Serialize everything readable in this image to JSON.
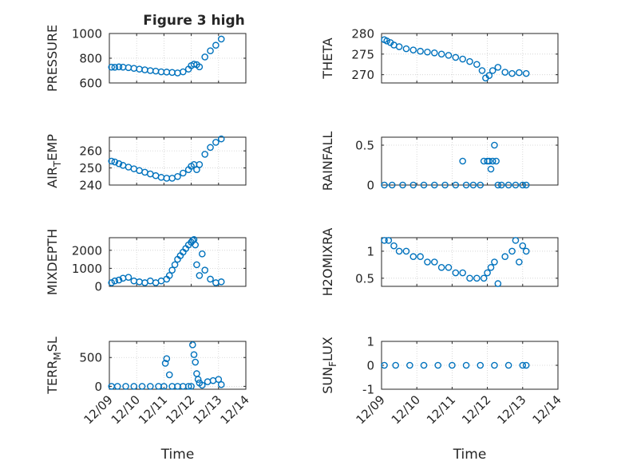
{
  "figure_title": "Figure 3 high",
  "marker_color": "#0072BD",
  "axis_color": "#262626",
  "grid_color": "#cfcfcf",
  "shared_x": {
    "label": "Time",
    "tick_labels": [
      "12/09",
      "12/10",
      "12/11",
      "12/12",
      "12/13",
      "12/14"
    ],
    "range_days": [
      9,
      14
    ]
  },
  "chart_data": [
    {
      "type": "scatter",
      "name": "pressure",
      "ylabel": "PRESSURE",
      "ylim": [
        600,
        1000
      ],
      "yticks": [
        600,
        800,
        1000
      ],
      "yticklabels": [
        "600",
        "800",
        "1000"
      ],
      "grid": true,
      "x": [
        9.08,
        9.2,
        9.35,
        9.5,
        9.7,
        9.9,
        10.1,
        10.3,
        10.5,
        10.7,
        10.9,
        11.1,
        11.3,
        11.5,
        11.7,
        11.9,
        12.0,
        12.1,
        12.2,
        12.3,
        12.5,
        12.7,
        12.9,
        13.1
      ],
      "y": [
        728,
        727,
        730,
        728,
        724,
        718,
        712,
        706,
        700,
        696,
        690,
        688,
        685,
        681,
        690,
        712,
        740,
        752,
        748,
        730,
        810,
        860,
        905,
        955
      ]
    },
    {
      "type": "scatter",
      "name": "theta",
      "ylabel": "THETA",
      "ylim": [
        268,
        280
      ],
      "yticks": [
        270,
        275,
        280
      ],
      "yticklabels": [
        "270",
        "275",
        "280"
      ],
      "grid": true,
      "x": [
        9.08,
        9.15,
        9.25,
        9.35,
        9.5,
        9.7,
        9.9,
        10.1,
        10.3,
        10.5,
        10.7,
        10.9,
        11.1,
        11.3,
        11.5,
        11.7,
        11.85,
        11.95,
        12.05,
        12.15,
        12.3,
        12.5,
        12.7,
        12.9,
        13.1
      ],
      "y": [
        278.5,
        278.2,
        277.8,
        277.2,
        276.8,
        276.3,
        276.0,
        275.7,
        275.5,
        275.3,
        275.0,
        274.7,
        274.2,
        273.8,
        273.2,
        272.5,
        271.0,
        269.2,
        269.8,
        271.0,
        271.8,
        270.6,
        270.3,
        270.5,
        270.3
      ]
    },
    {
      "type": "scatter",
      "name": "air_temp",
      "ylabel": "AIR_TEMP",
      "ylim": [
        240,
        268
      ],
      "yticks": [
        240,
        250,
        260
      ],
      "yticklabels": [
        "240",
        "250",
        "260"
      ],
      "grid": true,
      "x": [
        9.08,
        9.2,
        9.35,
        9.5,
        9.7,
        9.9,
        10.1,
        10.3,
        10.5,
        10.7,
        10.9,
        11.1,
        11.3,
        11.5,
        11.7,
        11.9,
        12.0,
        12.1,
        12.2,
        12.3,
        12.5,
        12.7,
        12.9,
        13.1
      ],
      "y": [
        254,
        253.5,
        252.5,
        251.5,
        250.5,
        249.5,
        248.5,
        247.5,
        246.5,
        245.5,
        244.5,
        244,
        244,
        245,
        247,
        249,
        251,
        252,
        249,
        252,
        258,
        262,
        265,
        267
      ]
    },
    {
      "type": "scatter",
      "name": "rainfall",
      "ylabel": "RAINFALL",
      "ylim": [
        0,
        0.6
      ],
      "yticks": [
        0,
        0.5
      ],
      "yticklabels": [
        "0",
        "0.5"
      ],
      "grid": true,
      "x": [
        9.08,
        9.3,
        9.6,
        9.9,
        10.2,
        10.5,
        10.8,
        11.1,
        11.3,
        11.4,
        11.6,
        11.8,
        11.9,
        12.0,
        12.05,
        12.1,
        12.15,
        12.2,
        12.25,
        12.3,
        12.4,
        12.6,
        12.8,
        13.0,
        13.1
      ],
      "y": [
        0,
        0,
        0,
        0,
        0,
        0,
        0,
        0,
        0.3,
        0,
        0,
        0,
        0.3,
        0.3,
        0.3,
        0.2,
        0.3,
        0.5,
        0.3,
        0,
        0,
        0,
        0,
        0,
        0
      ]
    },
    {
      "type": "scatter",
      "name": "mixdepth",
      "ylabel": "MIXDEPTH",
      "ylim": [
        0,
        2700
      ],
      "yticks": [
        0,
        1000,
        2000
      ],
      "yticklabels": [
        "0",
        "1000",
        "2000"
      ],
      "grid": true,
      "x": [
        9.08,
        9.2,
        9.35,
        9.5,
        9.7,
        9.9,
        10.1,
        10.3,
        10.5,
        10.7,
        10.9,
        11.1,
        11.2,
        11.3,
        11.4,
        11.5,
        11.6,
        11.7,
        11.8,
        11.9,
        12.0,
        12.05,
        12.1,
        12.15,
        12.2,
        12.3,
        12.4,
        12.5,
        12.7,
        12.9,
        13.1
      ],
      "y": [
        200,
        300,
        350,
        450,
        500,
        300,
        250,
        200,
        300,
        200,
        300,
        400,
        600,
        900,
        1200,
        1500,
        1700,
        1900,
        2100,
        2300,
        2450,
        2550,
        2600,
        2300,
        1200,
        600,
        1800,
        900,
        400,
        200,
        250
      ]
    },
    {
      "type": "scatter",
      "name": "h2omixra",
      "ylabel": "H2OMIXRA",
      "ylim": [
        0.35,
        1.25
      ],
      "yticks": [
        0.5,
        1
      ],
      "yticklabels": [
        "0.5",
        "1"
      ],
      "grid": true,
      "x": [
        9.08,
        9.2,
        9.35,
        9.5,
        9.7,
        9.9,
        10.1,
        10.3,
        10.5,
        10.7,
        10.9,
        11.1,
        11.3,
        11.5,
        11.7,
        11.9,
        12.0,
        12.1,
        12.2,
        12.3,
        12.5,
        12.7,
        12.8,
        12.9,
        13.0,
        13.1
      ],
      "y": [
        1.2,
        1.2,
        1.1,
        1.0,
        1.0,
        0.9,
        0.9,
        0.8,
        0.8,
        0.7,
        0.7,
        0.6,
        0.6,
        0.5,
        0.5,
        0.5,
        0.6,
        0.7,
        0.8,
        0.4,
        0.9,
        1.0,
        1.2,
        0.8,
        1.1,
        1.0
      ]
    },
    {
      "type": "scatter",
      "name": "terr_msl",
      "ylabel": "TERR_MSL",
      "ylim": [
        -50,
        780
      ],
      "yticks": [
        0,
        500
      ],
      "yticklabels": [
        "0",
        "500"
      ],
      "grid": true,
      "x": [
        9.08,
        9.3,
        9.6,
        9.9,
        10.2,
        10.5,
        10.8,
        11.0,
        11.05,
        11.1,
        11.2,
        11.3,
        11.5,
        11.7,
        11.9,
        12.0,
        12.05,
        12.1,
        12.15,
        12.2,
        12.25,
        12.3,
        12.4,
        12.6,
        12.8,
        13.0,
        13.1
      ],
      "y": [
        0,
        0,
        0,
        0,
        0,
        0,
        0,
        0,
        400,
        480,
        200,
        0,
        0,
        0,
        0,
        0,
        720,
        550,
        420,
        220,
        120,
        60,
        20,
        80,
        100,
        120,
        30
      ]
    },
    {
      "type": "scatter",
      "name": "sun_flux",
      "ylabel": "SUN_FLUX",
      "ylim": [
        -1,
        1
      ],
      "yticks": [
        -1,
        0,
        1
      ],
      "yticklabels": [
        "-1",
        "0",
        "1"
      ],
      "grid": true,
      "x": [
        9.08,
        9.4,
        9.8,
        10.2,
        10.6,
        11.0,
        11.4,
        11.8,
        12.2,
        12.6,
        13.0,
        13.1
      ],
      "y": [
        0,
        0,
        0,
        0,
        0,
        0,
        0,
        0,
        0,
        0,
        0,
        0
      ]
    }
  ]
}
